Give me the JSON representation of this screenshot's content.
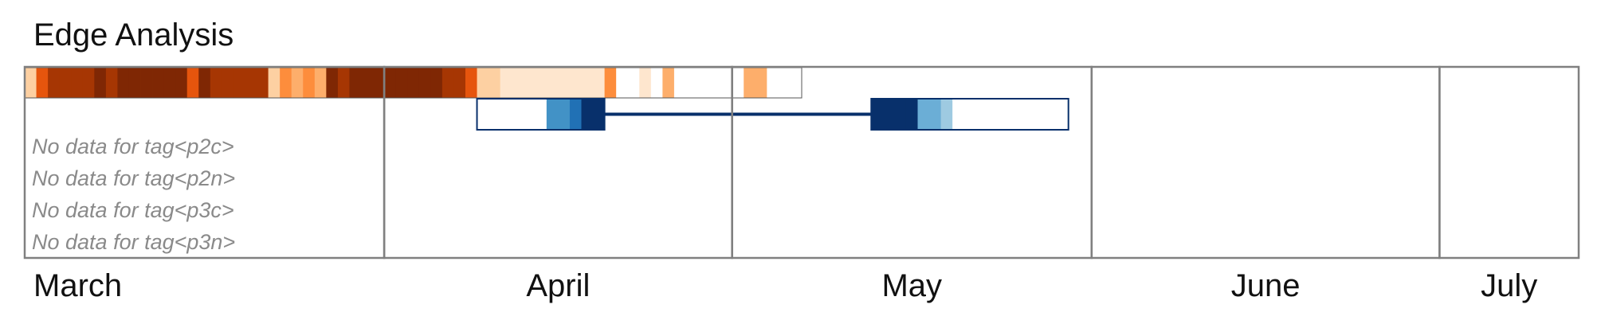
{
  "chart_data": {
    "type": "timeline",
    "title": "Edge Analysis",
    "time_range": [
      "2024-03-01",
      "2024-07-13"
    ],
    "months": [
      {
        "label": "March",
        "start": "2024-03-01",
        "end": "2024-04-01"
      },
      {
        "label": "April",
        "start": "2024-04-01",
        "end": "2024-05-01"
      },
      {
        "label": "May",
        "start": "2024-05-01",
        "end": "2024-06-01"
      },
      {
        "label": "June",
        "start": "2024-06-01",
        "end": "2024-07-01"
      },
      {
        "label": "July",
        "start": "2024-07-01",
        "end": "2024-07-13"
      }
    ],
    "heatmap_track": {
      "start": "2024-03-01",
      "step_days": 1,
      "colors": [
        "#fdd0a2",
        "#e6550d",
        "#a63603",
        "#a63603",
        "#a63603",
        "#a63603",
        "#7f2704",
        "#a63603",
        "#7f2704",
        "#7f2704",
        "#7f2704",
        "#7f2704",
        "#7f2704",
        "#7f2704",
        "#e6550d",
        "#7f2704",
        "#a63603",
        "#a63603",
        "#a63603",
        "#a63603",
        "#a63603",
        "#fdd0a2",
        "#fd8d3c",
        "#fdae6b",
        "#fd8d3c",
        "#fdae6b",
        "#7f2704",
        "#a63603",
        "#7f2704",
        "#7f2704",
        "#7f2704",
        "#7f2704",
        "#7f2704",
        "#7f2704",
        "#7f2704",
        "#7f2704",
        "#a63603",
        "#a63603",
        "#e6550d",
        "#fdd0a2",
        "#fdd0a2",
        "#fee6ce",
        "#fee6ce",
        "#fee6ce",
        "#fee6ce",
        "#fee6ce",
        "#fee6ce",
        "#fee6ce",
        "#fee6ce",
        "#fee6ce",
        "#fd8d3c",
        "#ffffff",
        "#ffffff",
        "#fee6ce",
        "#ffffff",
        "#fdae6b",
        "#ffffff",
        "#ffffff",
        "#ffffff",
        "#ffffff",
        "#ffffff",
        "#ffffff",
        "#fdae6b",
        "#fdae6b",
        "#ffffff",
        "#ffffff",
        "#ffffff"
      ]
    },
    "interval_track": {
      "range": [
        "2024-04-09",
        "2024-05-30"
      ],
      "line_color": "#08306b",
      "blocks": [
        {
          "start": "2024-04-09",
          "end": "2024-04-12",
          "color": "#ffffff"
        },
        {
          "start": "2024-04-12",
          "end": "2024-04-15",
          "color": "#ffffff"
        },
        {
          "start": "2024-04-15",
          "end": "2024-04-17",
          "color": "#4292c6"
        },
        {
          "start": "2024-04-17",
          "end": "2024-04-18",
          "color": "#2171b5"
        },
        {
          "start": "2024-04-18",
          "end": "2024-04-20",
          "color": "#08306b"
        },
        {
          "start": "2024-05-13",
          "end": "2024-05-16",
          "color": "#08306b"
        },
        {
          "start": "2024-05-16",
          "end": "2024-05-17",
          "color": "#08306b"
        },
        {
          "start": "2024-05-17",
          "end": "2024-05-19",
          "color": "#6baed6"
        },
        {
          "start": "2024-05-19",
          "end": "2024-05-20",
          "color": "#9ecae1"
        },
        {
          "start": "2024-05-20",
          "end": "2024-05-30",
          "color": "#ffffff"
        }
      ]
    },
    "missing_tracks": [
      "No data for tag<p2c>",
      "No data for tag<p2n>",
      "No data for tag<p3c>",
      "No data for tag<p3n>"
    ]
  }
}
